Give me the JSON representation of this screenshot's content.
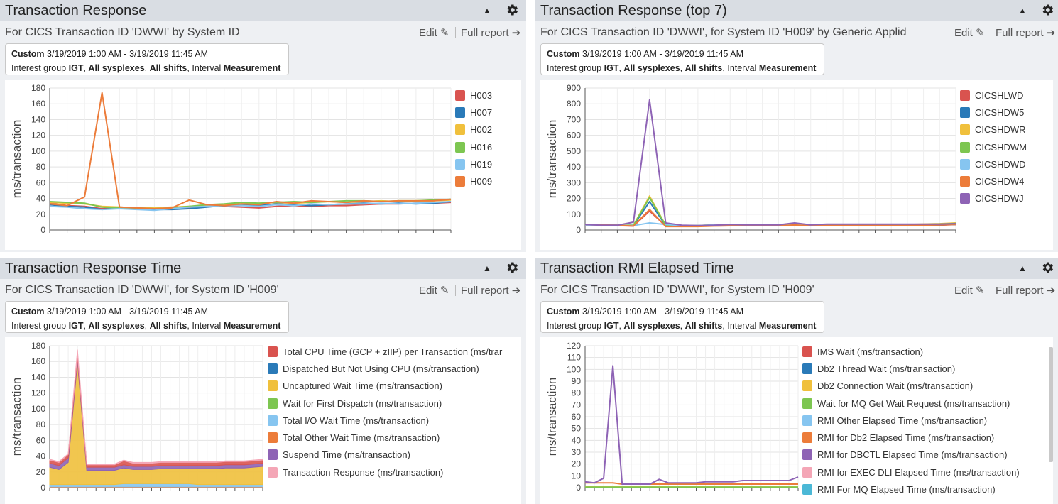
{
  "common": {
    "edit_label": "Edit",
    "full_report_label": "Full report",
    "info_custom": "Custom",
    "info_range": "3/19/2019 1:00 AM - 3/19/2019 11:45 AM",
    "info_interest": "Interest group",
    "info_igt": "IGT",
    "info_sysplexes": "All sysplexes",
    "info_shifts": "All shifts",
    "info_interval": "Interval",
    "info_measurement": "Measurement",
    "collapse_glyph": "▲"
  },
  "panels": [
    {
      "title": "Transaction Response",
      "subtitle": "For CICS Transaction ID 'DWWI' by System ID",
      "legend": [
        "H003",
        "H007",
        "H002",
        "H016",
        "H019",
        "H009"
      ],
      "chart_data": {
        "type": "line",
        "ylabel": "ms/transaction",
        "ylim": [
          0,
          180
        ],
        "yticks": [
          0,
          20,
          40,
          60,
          80,
          100,
          120,
          140,
          160,
          180
        ],
        "grid": true,
        "legend_position": "right",
        "series": [
          {
            "name": "H003",
            "color": "#d9534f",
            "values": [
              34,
              31,
              30,
              27,
              29,
              28,
              28,
              27,
              28,
              30,
              30,
              29,
              28,
              30,
              31,
              30,
              31,
              31,
              32,
              33,
              33,
              34,
              34,
              35
            ]
          },
          {
            "name": "H007",
            "color": "#2a7ab8",
            "values": [
              32,
              30,
              29,
              26,
              28,
              27,
              26,
              26,
              27,
              29,
              31,
              32,
              31,
              33,
              32,
              31,
              32,
              33,
              34,
              33,
              34,
              33,
              34,
              36
            ]
          },
          {
            "name": "H002",
            "color": "#f0c03c",
            "values": [
              35,
              34,
              33,
              30,
              29,
              28,
              28,
              29,
              30,
              31,
              32,
              33,
              34,
              35,
              34,
              35,
              36,
              35,
              36,
              37,
              36,
              37,
              37,
              38
            ]
          },
          {
            "name": "H016",
            "color": "#7dc651",
            "values": [
              36,
              35,
              34,
              29,
              28,
              28,
              27,
              28,
              30,
              32,
              33,
              35,
              34,
              35,
              36,
              35,
              36,
              37,
              37,
              36,
              37,
              37,
              38,
              39
            ]
          },
          {
            "name": "H019",
            "color": "#86c5f0",
            "values": [
              30,
              29,
              27,
              26,
              27,
              26,
              25,
              27,
              29,
              30,
              31,
              31,
              30,
              32,
              31,
              33,
              32,
              33,
              33,
              34,
              33,
              34,
              35,
              36
            ]
          },
          {
            "name": "H009",
            "color": "#ec7c3a",
            "values": [
              33,
              31,
              42,
              174,
              29,
              28,
              27,
              28,
              38,
              32,
              31,
              33,
              32,
              36,
              34,
              37,
              36,
              35,
              37,
              36,
              37,
              37,
              37,
              39
            ]
          }
        ]
      }
    },
    {
      "title": "Transaction Response (top 7)",
      "subtitle": "For CICS Transaction ID 'DWWI', for System ID 'H009' by Generic Applid",
      "legend": [
        "CICSHLWD",
        "CICSHDW5",
        "CICSHDWR",
        "CICSHDWM",
        "CICSHDWD",
        "CICSHDW4",
        "CICSHDWJ"
      ],
      "chart_data": {
        "type": "line",
        "ylabel": "ms/transaction",
        "ylim": [
          0,
          900
        ],
        "yticks": [
          0,
          100,
          200,
          300,
          400,
          500,
          600,
          700,
          800,
          900
        ],
        "grid": true,
        "legend_position": "right",
        "series": [
          {
            "name": "CICSHLWD",
            "color": "#d9534f",
            "values": [
              30,
              30,
              28,
              25,
              120,
              25,
              25,
              25,
              30,
              30,
              30,
              30,
              30,
              30,
              30,
              30,
              30,
              30,
              30,
              30,
              30,
              30,
              30,
              35
            ]
          },
          {
            "name": "CICSHDW5",
            "color": "#2a7ab8",
            "values": [
              32,
              30,
              30,
              28,
              180,
              28,
              26,
              26,
              30,
              32,
              30,
              32,
              30,
              35,
              30,
              33,
              33,
              33,
              33,
              33,
              33,
              33,
              33,
              35
            ]
          },
          {
            "name": "CICSHDWR",
            "color": "#f0c03c",
            "values": [
              35,
              32,
              30,
              30,
              215,
              30,
              28,
              28,
              32,
              33,
              33,
              33,
              33,
              38,
              33,
              35,
              35,
              35,
              35,
              35,
              35,
              38,
              40,
              45
            ]
          },
          {
            "name": "CICSHDWM",
            "color": "#7dc651",
            "values": [
              33,
              31,
              30,
              30,
              205,
              30,
              28,
              28,
              33,
              33,
              33,
              33,
              33,
              37,
              33,
              34,
              34,
              34,
              34,
              34,
              34,
              36,
              38,
              42
            ]
          },
          {
            "name": "CICSHDWD",
            "color": "#86c5f0",
            "values": [
              30,
              30,
              30,
              28,
              45,
              35,
              28,
              28,
              33,
              32,
              32,
              32,
              32,
              35,
              32,
              33,
              33,
              33,
              33,
              33,
              33,
              34,
              35,
              38
            ]
          },
          {
            "name": "CICSHDW4",
            "color": "#ec7c3a",
            "values": [
              34,
              32,
              30,
              25,
              130,
              22,
              22,
              22,
              25,
              27,
              27,
              27,
              27,
              32,
              27,
              29,
              29,
              29,
              29,
              29,
              29,
              31,
              33,
              35
            ]
          },
          {
            "name": "CICSHDWJ",
            "color": "#8e63b5",
            "values": [
              35,
              30,
              30,
              50,
              825,
              45,
              30,
              28,
              30,
              35,
              33,
              33,
              33,
              45,
              33,
              37,
              37,
              37,
              37,
              37,
              37,
              37,
              37,
              40
            ]
          }
        ]
      }
    },
    {
      "title": "Transaction Response Time",
      "subtitle": "For CICS Transaction ID 'DWWI', for System ID 'H009'",
      "legend": [
        "Total CPU Time (GCP + zIIP) per Transaction (ms/trar",
        "Dispatched But Not Using CPU (ms/transaction)",
        "Uncaptured Wait Time (ms/transaction)",
        "Wait for First Dispatch (ms/transaction)",
        "Total I/O Wait Time (ms/transaction)",
        "Total Other Wait Time (ms/transaction)",
        "Suspend Time (ms/transaction)",
        "Transaction Response (ms/transaction)"
      ],
      "chart_data": {
        "type": "area",
        "ylabel": "ms/transaction",
        "ylim": [
          0,
          180
        ],
        "yticks": [
          0,
          20,
          40,
          60,
          80,
          100,
          120,
          140,
          160,
          180
        ],
        "grid": true,
        "legend_position": "right",
        "stacked": true,
        "series": [
          {
            "name": "Total Other Wait Time (ms/transaction)",
            "color": "#ec7c3a",
            "values": [
              1,
              1,
              1,
              1,
              1,
              1,
              1,
              1,
              1,
              1,
              1,
              1,
              1,
              1,
              1,
              1,
              1,
              1,
              1,
              1,
              1,
              1,
              1,
              1
            ]
          },
          {
            "name": "Total I/O Wait Time (ms/transaction)",
            "color": "#86c5f0",
            "values": [
              3,
              3,
              3,
              3,
              3,
              3,
              3,
              3,
              4,
              4,
              4,
              4,
              4,
              4,
              4,
              4,
              3,
              3,
              3,
              3,
              3,
              3,
              3,
              3
            ]
          },
          {
            "name": "Uncaptured Wait Time (ms/transaction)",
            "color": "#f0c03c",
            "values": [
              22,
              19,
              28,
              155,
              18,
              18,
              18,
              18,
              20,
              18,
              18,
              18,
              19,
              19,
              19,
              19,
              20,
              20,
              20,
              21,
              21,
              21,
              22,
              23
            ]
          },
          {
            "name": "Suspend Time (ms/transaction)",
            "color": "#8e63b5",
            "values": [
              5,
              5,
              6,
              5,
              4,
              4,
              4,
              4,
              4,
              4,
              4,
              4,
              4,
              4,
              4,
              4,
              4,
              4,
              4,
              4,
              4,
              4,
              4,
              4
            ]
          },
          {
            "name": "Total CPU Time (GCP + zIIP) per Transaction (ms/trar",
            "color": "#d9534f",
            "values": [
              4,
              4,
              4,
              5,
              3,
              3,
              3,
              3,
              5,
              4,
              4,
              4,
              4,
              4,
              4,
              4,
              4,
              4,
              4,
              4,
              4,
              4,
              4,
              4
            ]
          },
          {
            "name": "Transaction Response (ms/transaction)",
            "color": "#f4a6b6",
            "values": [
              1,
              1,
              1,
              6,
              1,
              1,
              1,
              1,
              1,
              1,
              1,
              1,
              1,
              1,
              1,
              1,
              1,
              1,
              1,
              1,
              1,
              1,
              1,
              1
            ]
          }
        ]
      }
    },
    {
      "title": "Transaction RMI Elapsed Time",
      "subtitle": "For CICS Transaction ID 'DWWI', for System ID 'H009'",
      "legend": [
        "IMS Wait (ms/transaction)",
        "Db2 Thread Wait (ms/transaction)",
        "Db2 Connection Wait (ms/transaction)",
        "Wait for MQ Get Wait Request (ms/transaction)",
        "RMI Other Elapsed Time (ms/transaction)",
        "RMI for Db2 Elapsed Time (ms/transaction)",
        "RMI for DBCTL Elapsed Time (ms/transaction)",
        "RMI for EXEC DLI Elapsed Time (ms/transaction)",
        "RMI For MQ Elapsed Time (ms/transaction)"
      ],
      "chart_data": {
        "type": "line",
        "ylabel": "ms/transaction",
        "ylim": [
          0,
          120
        ],
        "yticks": [
          0,
          10,
          20,
          30,
          40,
          50,
          60,
          70,
          80,
          90,
          100,
          110,
          120
        ],
        "grid": true,
        "legend_position": "right",
        "series": [
          {
            "name": "RMI for Db2 Elapsed Time (ms/transaction)",
            "color": "#ec7c3a",
            "values": [
              4,
              4,
              4,
              4,
              3,
              3,
              3,
              3,
              3,
              3,
              3,
              3,
              3,
              3,
              3,
              3,
              3,
              3,
              3,
              3,
              3,
              3,
              3,
              3
            ]
          },
          {
            "name": "Db2 Connection Wait (ms/transaction)",
            "color": "#f0c03c",
            "values": [
              1,
              1,
              1,
              1,
              1,
              1,
              1,
              1,
              1,
              1,
              1,
              1,
              1,
              1,
              1,
              1,
              1,
              1,
              1,
              1,
              1,
              1,
              1,
              1
            ]
          },
          {
            "name": "Wait for MQ Get Wait Request (ms/transaction)",
            "color": "#7dc651",
            "values": [
              0.5,
              0.5,
              0.5,
              0.5,
              0.5,
              0.5,
              0.5,
              0.5,
              0.5,
              0.5,
              0.5,
              0.5,
              0.5,
              0.5,
              0.5,
              0.5,
              0.5,
              0.5,
              0.5,
              0.5,
              0.5,
              0.5,
              0.5,
              0.5
            ]
          },
          {
            "name": "RMI for DBCTL Elapsed Time (ms/transaction)",
            "color": "#8e63b5",
            "values": [
              5,
              4,
              8,
              103,
              3,
              3,
              3,
              3,
              7,
              4,
              4,
              4,
              4,
              5,
              5,
              5,
              5,
              6,
              6,
              6,
              6,
              6,
              6,
              9
            ]
          }
        ]
      }
    }
  ]
}
